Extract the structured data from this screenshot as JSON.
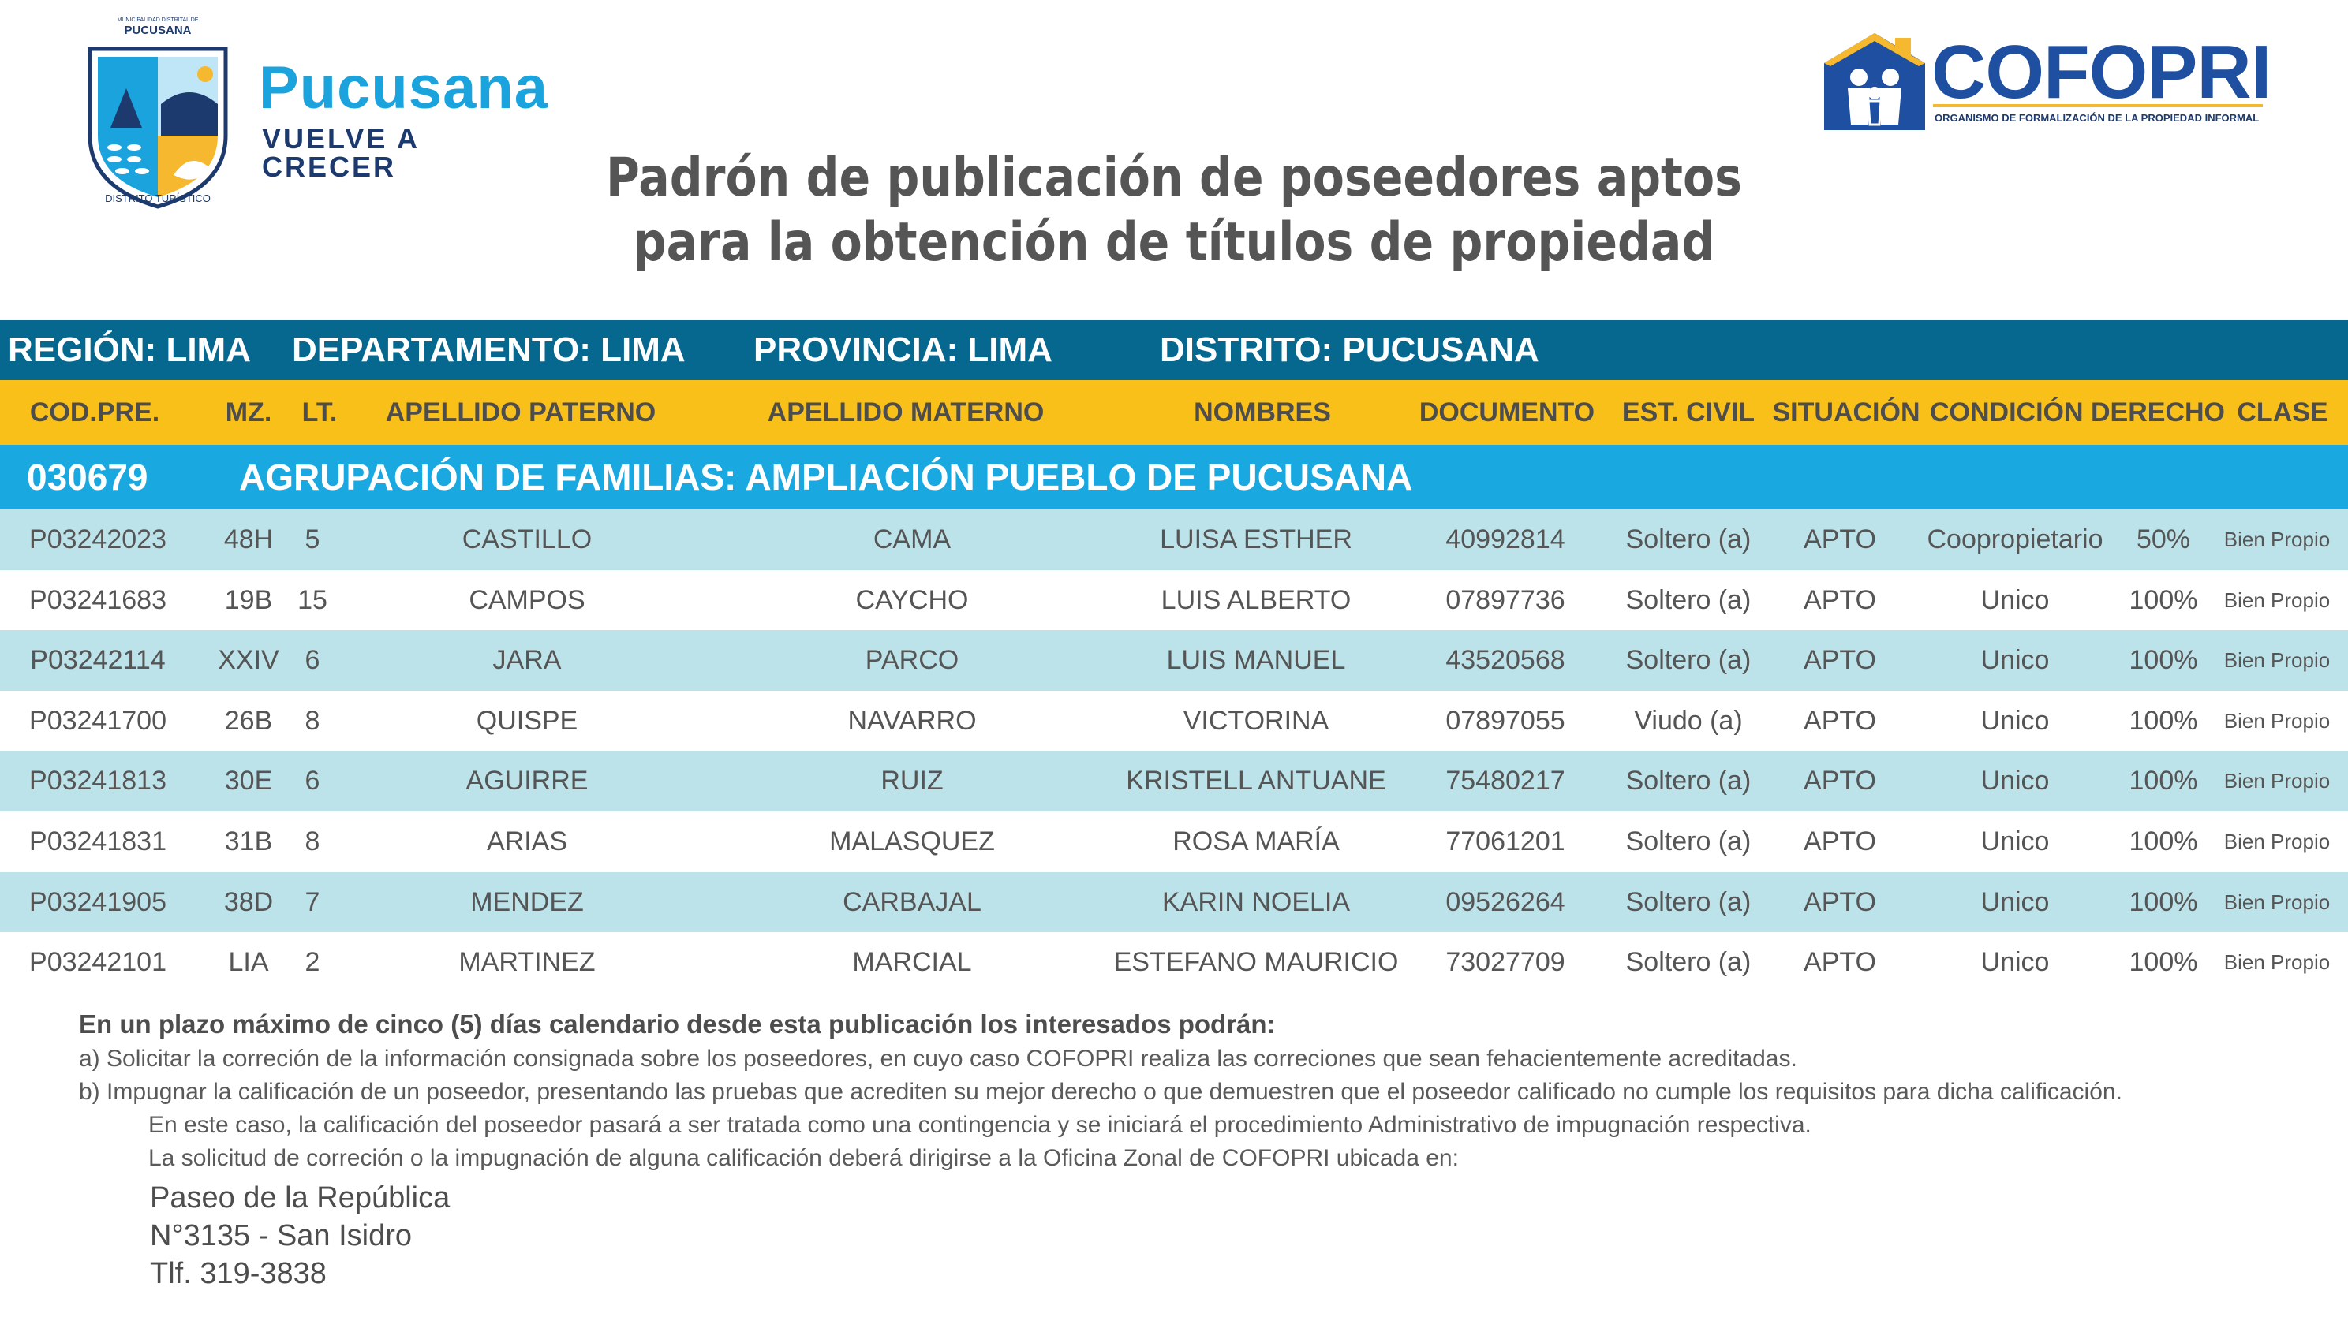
{
  "header": {
    "muni_crest_name": "PUCUSANA",
    "muni_crest_sub": "MUNICIPALIDAD DISTRITAL DE",
    "muni_crest_bottom": "DISTRITO TURÍSTICO",
    "muni_brand_title": "Pucusana",
    "muni_brand_sub": "VUELVE A CRECER",
    "cofopri_name": "COFOPRI",
    "cofopri_tagline": "ORGANISMO DE FORMALIZACIÓN DE LA PROPIEDAD INFORMAL",
    "colors": {
      "muni_blue": "#1aa3dc",
      "muni_navy": "#1d3a6e",
      "cofopri_blue": "#1f4fa0",
      "cofopri_gold": "#f5b82e"
    }
  },
  "title": {
    "line1": "Padrón de publicación de poseedores aptos",
    "line2": "para la obtención de títulos de propiedad"
  },
  "region_bar": {
    "region": "REGIÓN: LIMA",
    "departamento": "DEPARTAMENTO: LIMA",
    "provincia": "PROVINCIA: LIMA",
    "distrito": "DISTRITO: PUCUSANA"
  },
  "columns": {
    "cod_pre": "COD.PRE.",
    "mz": "MZ.",
    "lt": "LT.",
    "apellido_paterno": "APELLIDO PATERNO",
    "apellido_materno": "APELLIDO MATERNO",
    "nombres": "NOMBRES",
    "documento": "DOCUMENTO",
    "est_civil": "EST. CIVIL",
    "situacion": "SITUACIÓN",
    "condicion_derecho": "CONDICIÓN DERECHO",
    "clase": "CLASE"
  },
  "group": {
    "code": "030679",
    "name": "AGRUPACIÓN DE FAMILIAS: AMPLIACIÓN PUEBLO DE PUCUSANA"
  },
  "rows": [
    {
      "cod": "P03242023",
      "mz": "48H",
      "lt": "5",
      "paterno": "CASTILLO",
      "materno": "CAMA",
      "nombres": "LUISA ESTHER",
      "doc": "40992814",
      "civil": "Soltero (a)",
      "situacion": "APTO",
      "condicion": "Coopropietario",
      "derecho": "50%",
      "clase": "Bien Propio"
    },
    {
      "cod": "P03241683",
      "mz": "19B",
      "lt": "15",
      "paterno": "CAMPOS",
      "materno": "CAYCHO",
      "nombres": "LUIS ALBERTO",
      "doc": "07897736",
      "civil": "Soltero (a)",
      "situacion": "APTO",
      "condicion": "Unico",
      "derecho": "100%",
      "clase": "Bien Propio"
    },
    {
      "cod": "P03242114",
      "mz": "XXIV",
      "lt": "6",
      "paterno": "JARA",
      "materno": "PARCO",
      "nombres": "LUIS MANUEL",
      "doc": "43520568",
      "civil": "Soltero (a)",
      "situacion": "APTO",
      "condicion": "Unico",
      "derecho": "100%",
      "clase": "Bien Propio"
    },
    {
      "cod": "P03241700",
      "mz": "26B",
      "lt": "8",
      "paterno": "QUISPE",
      "materno": "NAVARRO",
      "nombres": "VICTORINA",
      "doc": "07897055",
      "civil": "Viudo (a)",
      "situacion": "APTO",
      "condicion": "Unico",
      "derecho": "100%",
      "clase": "Bien Propio"
    },
    {
      "cod": "P03241813",
      "mz": "30E",
      "lt": "6",
      "paterno": "AGUIRRE",
      "materno": "RUIZ",
      "nombres": "KRISTELL ANTUANE",
      "doc": "75480217",
      "civil": "Soltero (a)",
      "situacion": "APTO",
      "condicion": "Unico",
      "derecho": "100%",
      "clase": "Bien Propio"
    },
    {
      "cod": "P03241831",
      "mz": "31B",
      "lt": "8",
      "paterno": "ARIAS",
      "materno": "MALASQUEZ",
      "nombres": "ROSA MARÍA",
      "doc": "77061201",
      "civil": "Soltero (a)",
      "situacion": "APTO",
      "condicion": "Unico",
      "derecho": "100%",
      "clase": "Bien Propio"
    },
    {
      "cod": "P03241905",
      "mz": "38D",
      "lt": "7",
      "paterno": "MENDEZ",
      "materno": "CARBAJAL",
      "nombres": "KARIN NOELIA",
      "doc": "09526264",
      "civil": "Soltero (a)",
      "situacion": "APTO",
      "condicion": "Unico",
      "derecho": "100%",
      "clase": "Bien Propio"
    },
    {
      "cod": "P03242101",
      "mz": "LIA",
      "lt": "2",
      "paterno": "MARTINEZ",
      "materno": "MARCIAL",
      "nombres": "ESTEFANO MAURICIO",
      "doc": "73027709",
      "civil": "Soltero (a)",
      "situacion": "APTO",
      "condicion": "Unico",
      "derecho": "100%",
      "clase": "Bien Propio"
    }
  ],
  "notes": {
    "intro": "En un plazo máximo de cinco (5) días calendario desde esta publicación los interesados podrán:",
    "a": "a) Solicitar la correción de la información consignada sobre los poseedores, en cuyo caso COFOPRI realiza las correciones que sean fehacientemente acreditadas.",
    "b": "b) Impugnar la calificación de un poseedor, presentando las pruebas que acrediten su mejor derecho o que  demuestren que el poseedor calificado no cumple los requisitos para dicha calificación.",
    "b2": "En este caso, la calificación del poseedor pasará a ser tratada como una contingencia y se iniciará el procedimiento Administrativo de impugnación respectiva.",
    "c": "La solicitud de correción o la impugnación de alguna calificación deberá dirigirse a la Oficina Zonal de COFOPRI ubicada en:",
    "address1": "Paseo de la República",
    "address2": "N°3135 - San Isidro",
    "address3": "Tlf. 319-3838"
  }
}
